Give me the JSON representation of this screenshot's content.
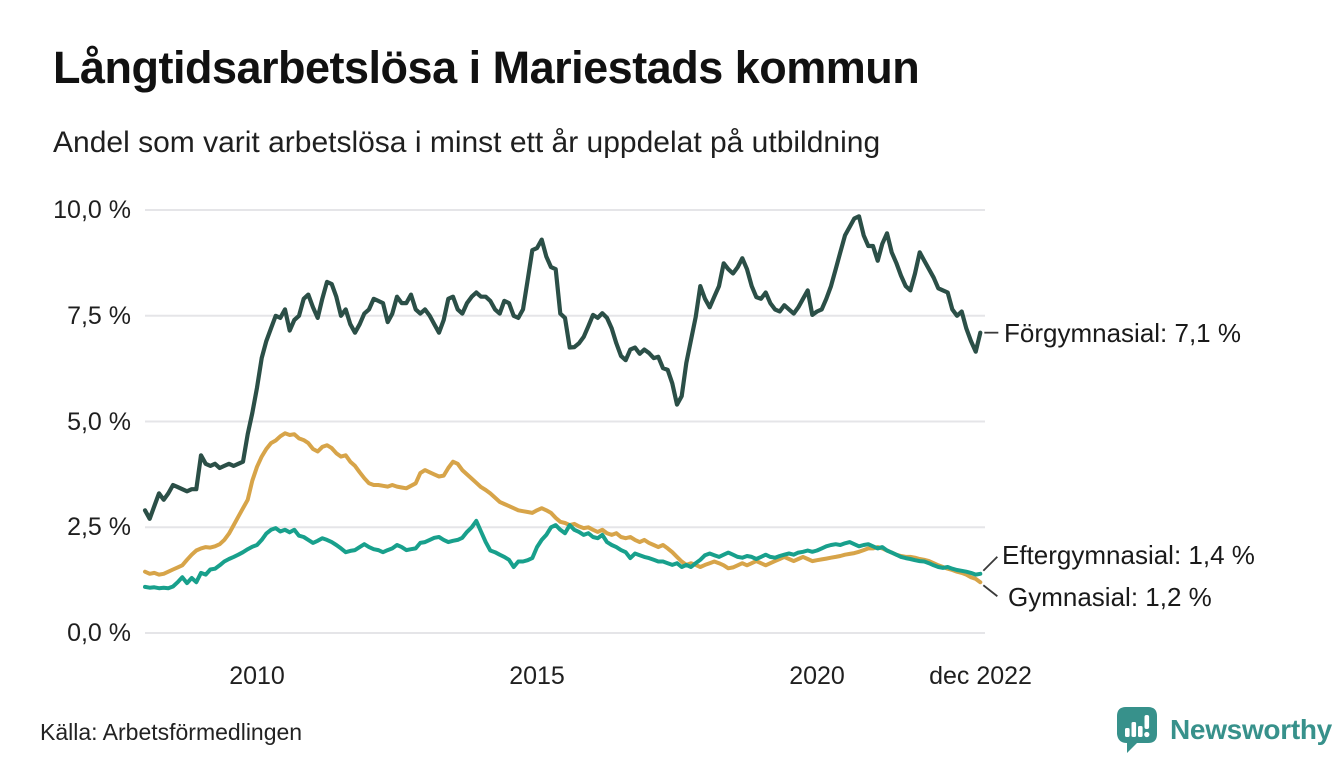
{
  "header": {
    "title": "Långtidsarbetslösa i Mariestads kommun",
    "subtitle": "Andel som varit arbetslösa i minst ett år uppdelat på utbildning"
  },
  "footer": {
    "source": "Källa: Arbetsförmedlingen",
    "brand_name": "Newsworthy",
    "brand_color": "#37918b",
    "brand_icon": "bar-chart-speech-bubble-icon"
  },
  "chart_data": {
    "type": "line",
    "title": "Långtidsarbetslösa i Mariestads kommun",
    "subtitle": "Andel som varit arbetslösa i minst ett år uppdelat på utbildning",
    "unit": "%",
    "x_start": 2008.0,
    "points_per_year": 12,
    "x_end_label": "dec 2022",
    "xlim": [
      2008.0,
      2023.0
    ],
    "ylim": [
      0,
      10.4
    ],
    "grid": "horizontal",
    "grid_color": "#e5e5e8",
    "legend_position": "right-of-line-ends",
    "y_ticks": [
      {
        "value": 10.0,
        "label": "10,0 %"
      },
      {
        "value": 7.5,
        "label": "7,5 %"
      },
      {
        "value": 5.0,
        "label": "5,0 %"
      },
      {
        "value": 2.5,
        "label": "2,5 %"
      },
      {
        "value": 0.0,
        "label": "0,0 %"
      }
    ],
    "x_ticks": [
      {
        "value": 2010.0,
        "label": "2010"
      },
      {
        "value": 2015.0,
        "label": "2015"
      },
      {
        "value": 2020.0,
        "label": "2020"
      },
      {
        "value": 2022.92,
        "label": "dec 2022"
      }
    ],
    "series": [
      {
        "name": "Förgymnasial",
        "color": "#2b4f47",
        "end_value": 7.1,
        "end_label": "Förgymnasial: 7,1 %",
        "values": [
          2.9,
          2.7,
          3.0,
          3.3,
          3.15,
          3.3,
          3.5,
          3.45,
          3.4,
          3.35,
          3.4,
          3.4,
          4.2,
          4.0,
          3.95,
          4.0,
          3.9,
          3.95,
          4.0,
          3.95,
          4.0,
          4.05,
          4.7,
          5.2,
          5.8,
          6.5,
          6.9,
          7.2,
          7.5,
          7.45,
          7.65,
          7.15,
          7.4,
          7.5,
          7.9,
          8.0,
          7.7,
          7.45,
          7.9,
          8.3,
          8.25,
          7.95,
          7.5,
          7.65,
          7.3,
          7.1,
          7.3,
          7.55,
          7.65,
          7.9,
          7.85,
          7.8,
          7.35,
          7.55,
          7.95,
          7.8,
          7.8,
          8.0,
          7.65,
          7.55,
          7.65,
          7.5,
          7.3,
          7.1,
          7.4,
          7.9,
          7.95,
          7.65,
          7.55,
          7.8,
          7.95,
          8.05,
          7.95,
          7.95,
          7.85,
          7.65,
          7.55,
          7.85,
          7.8,
          7.5,
          7.45,
          7.65,
          8.35,
          9.05,
          9.1,
          9.3,
          8.9,
          8.65,
          8.6,
          7.55,
          7.45,
          6.75,
          6.76,
          6.85,
          7.0,
          7.25,
          7.52,
          7.45,
          7.56,
          7.45,
          7.2,
          6.85,
          6.55,
          6.45,
          6.7,
          6.75,
          6.6,
          6.7,
          6.62,
          6.5,
          6.53,
          6.26,
          6.22,
          5.9,
          5.4,
          5.6,
          6.38,
          6.93,
          7.47,
          8.2,
          7.9,
          7.7,
          7.95,
          8.2,
          8.74,
          8.6,
          8.5,
          8.65,
          8.86,
          8.6,
          8.2,
          7.94,
          7.9,
          8.05,
          7.8,
          7.65,
          7.6,
          7.75,
          7.65,
          7.55,
          7.7,
          7.9,
          8.1,
          7.52,
          7.6,
          7.65,
          7.9,
          8.2,
          8.6,
          9.0,
          9.4,
          9.6,
          9.8,
          9.85,
          9.4,
          9.15,
          9.15,
          8.8,
          9.2,
          9.45,
          9.0,
          8.75,
          8.45,
          8.2,
          8.1,
          8.5,
          9.0,
          8.8,
          8.6,
          8.4,
          8.15,
          8.1,
          8.05,
          7.65,
          7.5,
          7.6,
          7.2,
          6.9,
          6.65,
          7.1
        ]
      },
      {
        "name": "Gymnasial",
        "color": "#d7a449",
        "end_value": 1.2,
        "end_label": "Gymnasial: 1,2 %",
        "values": [
          1.45,
          1.4,
          1.42,
          1.38,
          1.4,
          1.45,
          1.5,
          1.55,
          1.6,
          1.73,
          1.85,
          1.95,
          2.0,
          2.03,
          2.02,
          2.05,
          2.1,
          2.2,
          2.35,
          2.55,
          2.75,
          2.95,
          3.15,
          3.6,
          3.93,
          4.17,
          4.35,
          4.49,
          4.55,
          4.65,
          4.72,
          4.68,
          4.7,
          4.6,
          4.56,
          4.49,
          4.35,
          4.29,
          4.4,
          4.44,
          4.37,
          4.25,
          4.17,
          4.2,
          4.05,
          3.95,
          3.8,
          3.66,
          3.54,
          3.5,
          3.5,
          3.48,
          3.46,
          3.5,
          3.46,
          3.44,
          3.42,
          3.48,
          3.54,
          3.78,
          3.85,
          3.8,
          3.75,
          3.7,
          3.72,
          3.9,
          4.05,
          4.0,
          3.85,
          3.75,
          3.65,
          3.55,
          3.45,
          3.38,
          3.3,
          3.2,
          3.1,
          3.05,
          3.0,
          2.95,
          2.9,
          2.88,
          2.86,
          2.84,
          2.9,
          2.95,
          2.9,
          2.84,
          2.72,
          2.63,
          2.6,
          2.55,
          2.58,
          2.52,
          2.48,
          2.5,
          2.44,
          2.39,
          2.44,
          2.36,
          2.32,
          2.36,
          2.27,
          2.24,
          2.27,
          2.2,
          2.15,
          2.2,
          2.13,
          2.08,
          2.03,
          2.08,
          2.0,
          1.91,
          1.8,
          1.69,
          1.61,
          1.65,
          1.61,
          1.56,
          1.61,
          1.65,
          1.69,
          1.65,
          1.6,
          1.53,
          1.55,
          1.6,
          1.65,
          1.6,
          1.65,
          1.7,
          1.65,
          1.6,
          1.65,
          1.7,
          1.75,
          1.8,
          1.75,
          1.7,
          1.75,
          1.8,
          1.75,
          1.7,
          1.72,
          1.74,
          1.76,
          1.78,
          1.8,
          1.82,
          1.85,
          1.87,
          1.89,
          1.92,
          1.96,
          2.0,
          2.0,
          2.03,
          2.0,
          1.95,
          1.9,
          1.85,
          1.82,
          1.8,
          1.8,
          1.78,
          1.75,
          1.73,
          1.7,
          1.65,
          1.6,
          1.56,
          1.52,
          1.49,
          1.45,
          1.42,
          1.38,
          1.32,
          1.28,
          1.2
        ]
      },
      {
        "name": "Eftergymnasial",
        "color": "#18a08c",
        "end_value": 1.4,
        "end_label": "Eftergymnasial: 1,4 %",
        "values": [
          1.09,
          1.07,
          1.08,
          1.06,
          1.07,
          1.06,
          1.1,
          1.2,
          1.32,
          1.18,
          1.3,
          1.2,
          1.42,
          1.38,
          1.5,
          1.52,
          1.6,
          1.69,
          1.75,
          1.8,
          1.85,
          1.91,
          1.98,
          2.04,
          2.08,
          2.2,
          2.35,
          2.44,
          2.48,
          2.4,
          2.44,
          2.38,
          2.44,
          2.3,
          2.27,
          2.2,
          2.13,
          2.18,
          2.24,
          2.2,
          2.15,
          2.08,
          2.0,
          1.91,
          1.94,
          1.96,
          2.03,
          2.1,
          2.03,
          1.98,
          1.96,
          1.91,
          1.96,
          2.0,
          2.08,
          2.03,
          1.96,
          1.98,
          2.0,
          2.13,
          2.15,
          2.2,
          2.25,
          2.27,
          2.2,
          2.15,
          2.18,
          2.2,
          2.25,
          2.39,
          2.5,
          2.65,
          2.4,
          2.15,
          1.95,
          1.91,
          1.85,
          1.8,
          1.73,
          1.56,
          1.69,
          1.69,
          1.72,
          1.77,
          2.03,
          2.2,
          2.32,
          2.5,
          2.55,
          2.44,
          2.36,
          2.55,
          2.44,
          2.39,
          2.32,
          2.36,
          2.27,
          2.24,
          2.32,
          2.15,
          2.08,
          2.03,
          1.96,
          1.91,
          1.77,
          1.88,
          1.84,
          1.8,
          1.77,
          1.73,
          1.69,
          1.69,
          1.65,
          1.61,
          1.65,
          1.56,
          1.61,
          1.56,
          1.65,
          1.73,
          1.84,
          1.88,
          1.84,
          1.8,
          1.85,
          1.9,
          1.85,
          1.8,
          1.78,
          1.82,
          1.8,
          1.75,
          1.8,
          1.85,
          1.8,
          1.78,
          1.82,
          1.85,
          1.88,
          1.85,
          1.9,
          1.92,
          1.95,
          1.92,
          1.95,
          2.0,
          2.05,
          2.08,
          2.1,
          2.08,
          2.12,
          2.15,
          2.1,
          2.05,
          2.08,
          2.1,
          2.05,
          2.0,
          2.03,
          1.95,
          1.9,
          1.85,
          1.8,
          1.77,
          1.75,
          1.72,
          1.7,
          1.69,
          1.65,
          1.6,
          1.56,
          1.54,
          1.56,
          1.52,
          1.49,
          1.47,
          1.45,
          1.42,
          1.38,
          1.4
        ]
      }
    ]
  }
}
